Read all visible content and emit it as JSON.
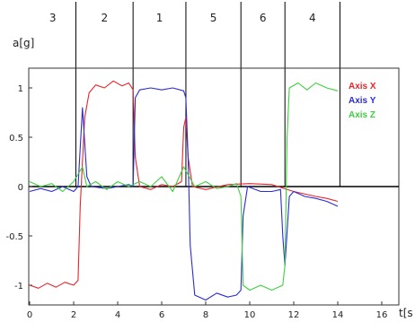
{
  "chart_data": {
    "type": "line",
    "xlabel": "t[s",
    "ylabel": "a[g]",
    "xlim": [
      0,
      16.5
    ],
    "ylim": [
      -1.2,
      1.25
    ],
    "xticks": [
      0,
      2,
      4,
      6,
      8,
      10,
      12,
      14,
      16
    ],
    "yticks": [
      -1,
      -0.5,
      0,
      0.5,
      1
    ],
    "ytick_labels": [
      "-1",
      "-0.5",
      "0",
      "0.5",
      "1"
    ],
    "grid": false,
    "legend_position": "top-right",
    "segments": [
      {
        "label": "3",
        "start": 0,
        "end": 2.1
      },
      {
        "label": "2",
        "start": 2.1,
        "end": 4.7
      },
      {
        "label": "1",
        "start": 4.7,
        "end": 7.1
      },
      {
        "label": "5",
        "start": 7.1,
        "end": 9.6
      },
      {
        "label": "6",
        "start": 9.6,
        "end": 11.6
      },
      {
        "label": "4",
        "start": 11.6,
        "end": 14.1
      }
    ],
    "series": [
      {
        "name": "Axis X",
        "color": "#e8242a",
        "points": [
          [
            0,
            -1.0
          ],
          [
            0.4,
            -1.03
          ],
          [
            0.8,
            -0.98
          ],
          [
            1.2,
            -1.02
          ],
          [
            1.6,
            -0.97
          ],
          [
            2.0,
            -1.0
          ],
          [
            2.2,
            -0.95
          ],
          [
            2.3,
            -0.2
          ],
          [
            2.5,
            0.7
          ],
          [
            2.7,
            0.95
          ],
          [
            3.0,
            1.03
          ],
          [
            3.4,
            1.0
          ],
          [
            3.8,
            1.07
          ],
          [
            4.2,
            1.02
          ],
          [
            4.5,
            1.05
          ],
          [
            4.7,
            0.98
          ],
          [
            4.8,
            0.3
          ],
          [
            5.0,
            0.0
          ],
          [
            5.5,
            -0.03
          ],
          [
            6.0,
            0.02
          ],
          [
            6.5,
            0.0
          ],
          [
            6.9,
            0.05
          ],
          [
            7.0,
            0.6
          ],
          [
            7.1,
            0.7
          ],
          [
            7.2,
            0.3
          ],
          [
            7.4,
            0.0
          ],
          [
            8.0,
            -0.03
          ],
          [
            9.0,
            0.02
          ],
          [
            10.0,
            0.03
          ],
          [
            11.0,
            0.02
          ],
          [
            12.0,
            -0.05
          ],
          [
            13.0,
            -0.1
          ],
          [
            13.5,
            -0.12
          ],
          [
            14.0,
            -0.15
          ]
        ]
      },
      {
        "name": "Axis Y",
        "color": "#2b2bd6",
        "points": [
          [
            0,
            -0.05
          ],
          [
            0.5,
            -0.02
          ],
          [
            1.0,
            -0.05
          ],
          [
            1.5,
            0.0
          ],
          [
            2.0,
            -0.05
          ],
          [
            2.2,
            0.0
          ],
          [
            2.4,
            0.8
          ],
          [
            2.6,
            0.1
          ],
          [
            2.8,
            0.0
          ],
          [
            3.5,
            -0.02
          ],
          [
            4.0,
            0.0
          ],
          [
            4.5,
            0.02
          ],
          [
            4.7,
            0.0
          ],
          [
            4.8,
            0.9
          ],
          [
            5.0,
            0.98
          ],
          [
            5.5,
            1.0
          ],
          [
            6.0,
            0.98
          ],
          [
            6.5,
            1.0
          ],
          [
            7.0,
            0.97
          ],
          [
            7.1,
            0.9
          ],
          [
            7.2,
            0.3
          ],
          [
            7.3,
            -0.6
          ],
          [
            7.5,
            -1.1
          ],
          [
            8.0,
            -1.15
          ],
          [
            8.5,
            -1.08
          ],
          [
            9.0,
            -1.12
          ],
          [
            9.4,
            -1.1
          ],
          [
            9.6,
            -1.05
          ],
          [
            9.7,
            -0.3
          ],
          [
            9.9,
            0.0
          ],
          [
            10.5,
            -0.05
          ],
          [
            11.0,
            -0.05
          ],
          [
            11.4,
            -0.03
          ],
          [
            11.5,
            -0.5
          ],
          [
            11.6,
            -0.8
          ],
          [
            11.8,
            -0.1
          ],
          [
            12.0,
            -0.05
          ],
          [
            12.5,
            -0.1
          ],
          [
            13.0,
            -0.12
          ],
          [
            13.5,
            -0.15
          ],
          [
            14.0,
            -0.2
          ]
        ]
      },
      {
        "name": "Axis Z",
        "color": "#3ecf3e",
        "points": [
          [
            0,
            0.05
          ],
          [
            0.5,
            0.0
          ],
          [
            1.0,
            0.03
          ],
          [
            1.5,
            -0.05
          ],
          [
            2.0,
            0.05
          ],
          [
            2.4,
            0.2
          ],
          [
            2.6,
            0.0
          ],
          [
            3.0,
            0.05
          ],
          [
            3.5,
            -0.03
          ],
          [
            4.0,
            0.05
          ],
          [
            4.5,
            0.0
          ],
          [
            5.0,
            0.05
          ],
          [
            5.5,
            0.0
          ],
          [
            6.0,
            0.1
          ],
          [
            6.5,
            -0.05
          ],
          [
            7.0,
            0.2
          ],
          [
            7.5,
            0.0
          ],
          [
            8.0,
            0.05
          ],
          [
            8.5,
            -0.02
          ],
          [
            9.0,
            0.0
          ],
          [
            9.4,
            0.03
          ],
          [
            9.6,
            -0.1
          ],
          [
            9.7,
            -1.0
          ],
          [
            10.0,
            -1.05
          ],
          [
            10.5,
            -1.0
          ],
          [
            11.0,
            -1.05
          ],
          [
            11.5,
            -1.0
          ],
          [
            11.6,
            -0.8
          ],
          [
            11.7,
            0.5
          ],
          [
            11.8,
            1.0
          ],
          [
            12.2,
            1.05
          ],
          [
            12.6,
            0.98
          ],
          [
            13.0,
            1.05
          ],
          [
            13.5,
            1.0
          ],
          [
            14.0,
            0.97
          ]
        ]
      }
    ]
  }
}
